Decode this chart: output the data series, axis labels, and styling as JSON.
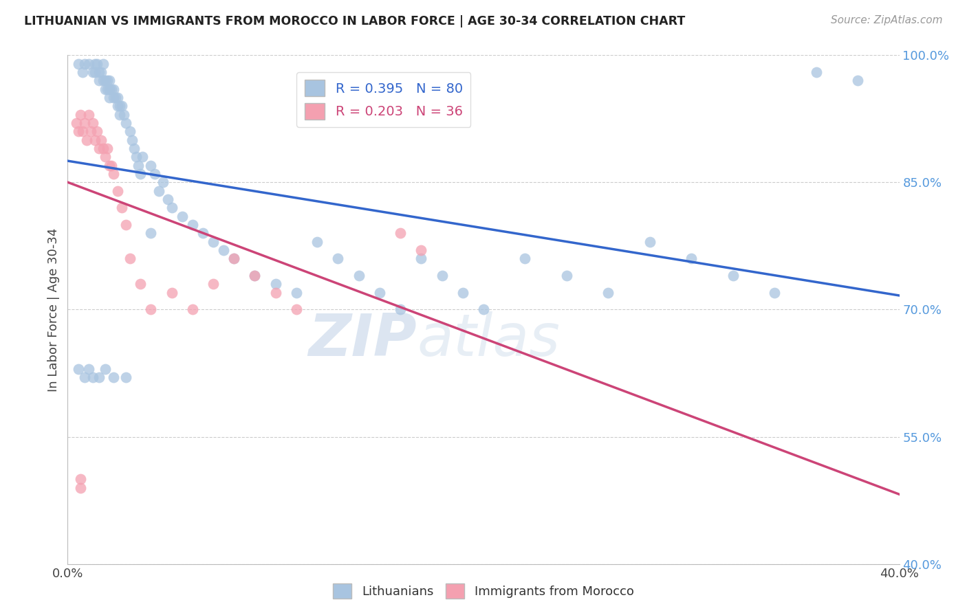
{
  "title": "LITHUANIAN VS IMMIGRANTS FROM MOROCCO IN LABOR FORCE | AGE 30-34 CORRELATION CHART",
  "source": "Source: ZipAtlas.com",
  "ylabel": "In Labor Force | Age 30-34",
  "xmin": 0.0,
  "xmax": 0.4,
  "ymin": 0.4,
  "ymax": 1.0,
  "ytick_labels": [
    "40.0%",
    "55.0%",
    "70.0%",
    "85.0%",
    "100.0%"
  ],
  "ytick_values": [
    0.4,
    0.55,
    0.7,
    0.85,
    1.0
  ],
  "blue_R": 0.395,
  "blue_N": 80,
  "pink_R": 0.203,
  "pink_N": 36,
  "blue_color": "#a8c4e0",
  "pink_color": "#f4a0b0",
  "blue_line_color": "#3366cc",
  "pink_line_color": "#cc4477",
  "watermark_zip": "ZIP",
  "watermark_atlas": "atlas",
  "blue_scatter_x": [
    0.005,
    0.007,
    0.008,
    0.01,
    0.012,
    0.013,
    0.013,
    0.014,
    0.015,
    0.015,
    0.016,
    0.017,
    0.017,
    0.018,
    0.018,
    0.019,
    0.019,
    0.02,
    0.02,
    0.02,
    0.021,
    0.022,
    0.022,
    0.023,
    0.024,
    0.024,
    0.025,
    0.025,
    0.026,
    0.027,
    0.028,
    0.03,
    0.031,
    0.032,
    0.033,
    0.034,
    0.035,
    0.036,
    0.04,
    0.042,
    0.044,
    0.046,
    0.048,
    0.05,
    0.055,
    0.06,
    0.065,
    0.07,
    0.075,
    0.08,
    0.09,
    0.1,
    0.11,
    0.12,
    0.13,
    0.14,
    0.15,
    0.16,
    0.17,
    0.18,
    0.19,
    0.2,
    0.22,
    0.24,
    0.26,
    0.28,
    0.3,
    0.32,
    0.34,
    0.36,
    0.005,
    0.008,
    0.01,
    0.012,
    0.015,
    0.018,
    0.022,
    0.028,
    0.04,
    0.38
  ],
  "blue_scatter_y": [
    0.99,
    0.98,
    0.99,
    0.99,
    0.98,
    0.99,
    0.98,
    0.99,
    0.98,
    0.97,
    0.98,
    0.97,
    0.99,
    0.97,
    0.96,
    0.97,
    0.96,
    0.97,
    0.96,
    0.95,
    0.96,
    0.95,
    0.96,
    0.95,
    0.94,
    0.95,
    0.94,
    0.93,
    0.94,
    0.93,
    0.92,
    0.91,
    0.9,
    0.89,
    0.88,
    0.87,
    0.86,
    0.88,
    0.87,
    0.86,
    0.84,
    0.85,
    0.83,
    0.82,
    0.81,
    0.8,
    0.79,
    0.78,
    0.77,
    0.76,
    0.74,
    0.73,
    0.72,
    0.78,
    0.76,
    0.74,
    0.72,
    0.7,
    0.76,
    0.74,
    0.72,
    0.7,
    0.76,
    0.74,
    0.72,
    0.78,
    0.76,
    0.74,
    0.72,
    0.98,
    0.63,
    0.62,
    0.63,
    0.62,
    0.62,
    0.63,
    0.62,
    0.62,
    0.79,
    0.97
  ],
  "pink_scatter_x": [
    0.004,
    0.005,
    0.006,
    0.007,
    0.008,
    0.009,
    0.01,
    0.011,
    0.012,
    0.013,
    0.014,
    0.015,
    0.016,
    0.017,
    0.018,
    0.019,
    0.02,
    0.021,
    0.022,
    0.024,
    0.026,
    0.028,
    0.03,
    0.035,
    0.04,
    0.05,
    0.06,
    0.07,
    0.08,
    0.09,
    0.1,
    0.11,
    0.006,
    0.006,
    0.16,
    0.17
  ],
  "pink_scatter_y": [
    0.92,
    0.91,
    0.93,
    0.91,
    0.92,
    0.9,
    0.93,
    0.91,
    0.92,
    0.9,
    0.91,
    0.89,
    0.9,
    0.89,
    0.88,
    0.89,
    0.87,
    0.87,
    0.86,
    0.84,
    0.82,
    0.8,
    0.76,
    0.73,
    0.7,
    0.72,
    0.7,
    0.73,
    0.76,
    0.74,
    0.72,
    0.7,
    0.5,
    0.49,
    0.79,
    0.77
  ]
}
